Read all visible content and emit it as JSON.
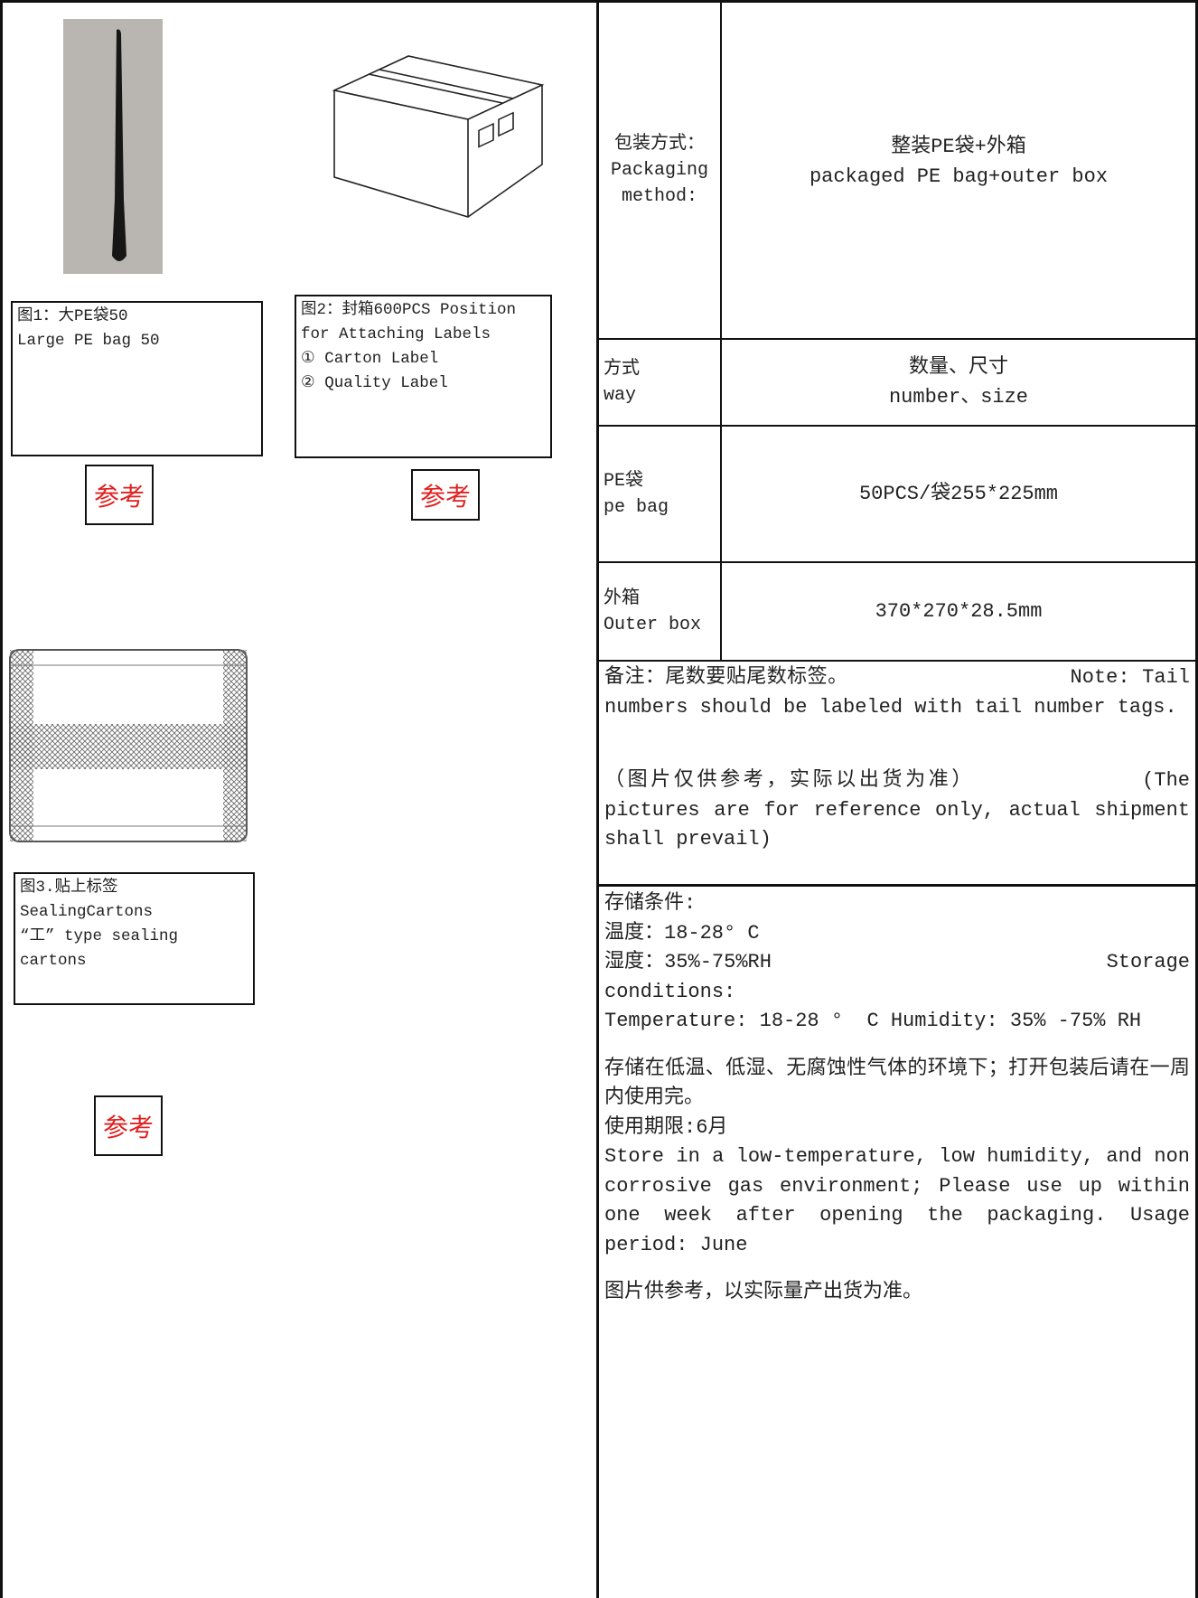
{
  "figures": [
    {
      "caption": [
        "图1：大PE袋50",
        "Large PE bag 50"
      ],
      "stamp": "参考"
    },
    {
      "caption": [
        "图2：封箱600PCS Position",
        "for Attaching Labels",
        "① Carton Label",
        "② Quality Label"
      ],
      "stamp": "参考"
    },
    {
      "caption": [
        "图3.贴上标签",
        "SealingCartons",
        "“工” type sealing",
        "cartons"
      ],
      "stamp": "参考"
    }
  ],
  "table": {
    "rows": [
      {
        "label": [
          "包装方式：",
          "Packaging",
          "method:"
        ],
        "value": [
          "整装PE袋+外箱",
          "packaged PE bag+outer box"
        ]
      },
      {
        "label": [
          "方式",
          "way"
        ],
        "value": [
          "数量、尺寸",
          "number、size"
        ]
      },
      {
        "label": [
          "PE袋",
          "pe bag"
        ],
        "value": [
          "50PCS/袋255*225mm"
        ]
      },
      {
        "label": [
          "外箱",
          "Outer box"
        ],
        "value": [
          "370*270*28.5mm"
        ]
      }
    ]
  },
  "notes": [
    "备注：尾数要贴尾数标签。                  Note: Tail numbers should be labeled with tail number tags.",
    "（图片仅供参考，实际以出货为准）           (The pictures are for reference only, actual shipment shall prevail)"
  ],
  "storage": {
    "lines": [
      "存储条件:",
      "温度：18-28° C",
      "湿度：35%-75%RH                            Storage conditions:",
      "Temperature: 18-28 °  C Humidity: 35% -75% RH"
    ],
    "paragraphs": [
      "存储在低温、低湿、无腐蚀性气体的环境下；打开包装后请在一周内使用完。",
      "使用期限:6月",
      "Store in a low-temperature, low humidity, and non corrosive gas environment; Please use up within one week after opening the packaging. Usage period: June"
    ],
    "footer": "图片供参考，以实际量产出货为准。"
  }
}
